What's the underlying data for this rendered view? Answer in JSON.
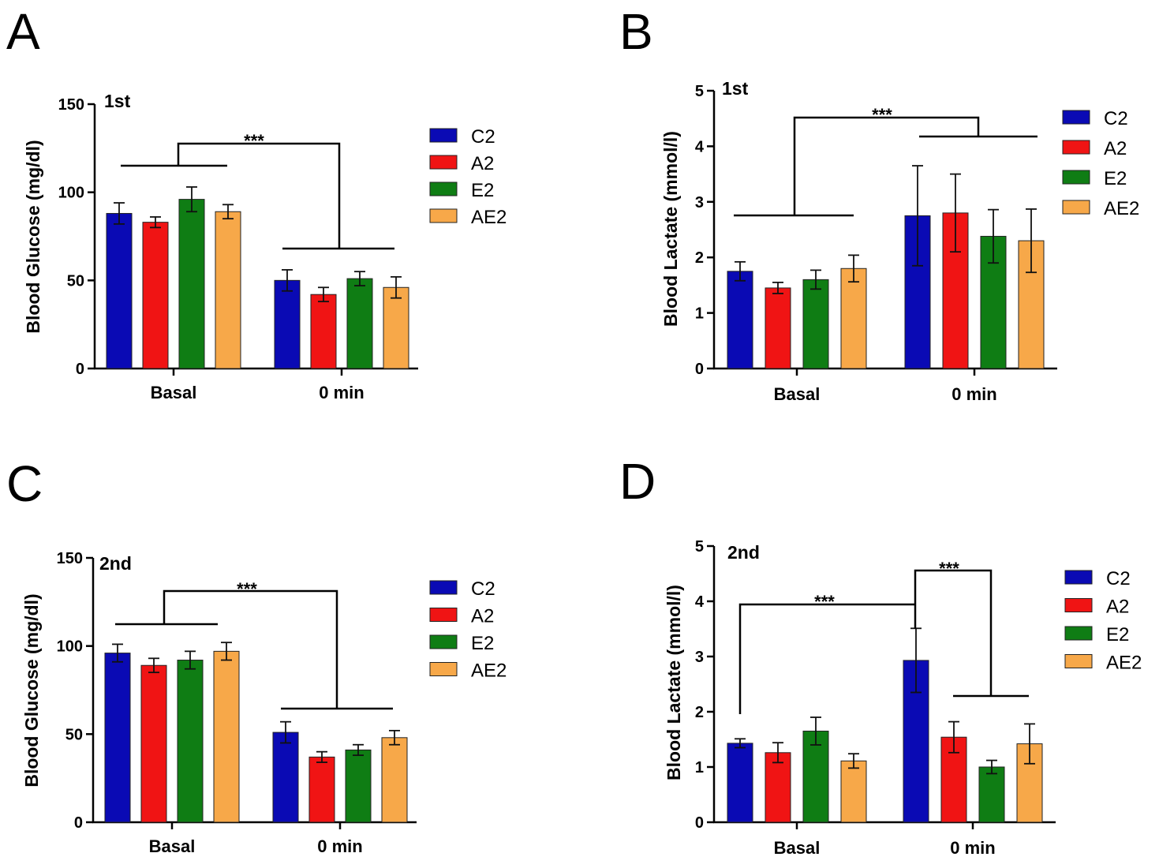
{
  "colors": {
    "C2": "#0a0ab4",
    "A2": "#f01414",
    "E2": "#0f7d14",
    "AE2": "#f7a849",
    "axis": "#000000"
  },
  "chart_data": [
    {
      "panel": "A",
      "type": "bar",
      "subtitle": "1st",
      "ylabel": "Blood Glucose (mg/dl)",
      "ylim": [
        0,
        150
      ],
      "yticks": [
        0,
        50,
        100,
        150
      ],
      "categories": [
        "Basal",
        "0 min"
      ],
      "series": [
        {
          "name": "C2",
          "values": [
            88,
            50
          ],
          "errors": [
            6,
            6
          ]
        },
        {
          "name": "A2",
          "values": [
            83,
            42
          ],
          "errors": [
            3,
            4
          ]
        },
        {
          "name": "E2",
          "values": [
            96,
            51
          ],
          "errors": [
            7,
            4
          ]
        },
        {
          "name": "AE2",
          "values": [
            89,
            46
          ],
          "errors": [
            4,
            6
          ]
        }
      ],
      "significance": [
        {
          "label": "***"
        }
      ]
    },
    {
      "panel": "B",
      "type": "bar",
      "subtitle": "1st",
      "ylabel": "Blood Lactate (mmol/l)",
      "ylim": [
        0,
        5
      ],
      "yticks": [
        0,
        1,
        2,
        3,
        4,
        5
      ],
      "categories": [
        "Basal",
        "0 min"
      ],
      "series": [
        {
          "name": "C2",
          "values": [
            1.75,
            2.75
          ],
          "errors": [
            0.17,
            0.9
          ]
        },
        {
          "name": "A2",
          "values": [
            1.45,
            2.8
          ],
          "errors": [
            0.1,
            0.7
          ]
        },
        {
          "name": "E2",
          "values": [
            1.6,
            2.38
          ],
          "errors": [
            0.17,
            0.48
          ]
        },
        {
          "name": "AE2",
          "values": [
            1.8,
            2.3
          ],
          "errors": [
            0.24,
            0.57
          ]
        }
      ],
      "significance": [
        {
          "label": "***"
        }
      ]
    },
    {
      "panel": "C",
      "type": "bar",
      "subtitle": "2nd",
      "ylabel": "Blood Glucose (mg/dl)",
      "ylim": [
        0,
        150
      ],
      "yticks": [
        0,
        50,
        100,
        150
      ],
      "categories": [
        "Basal",
        "0 min"
      ],
      "series": [
        {
          "name": "C2",
          "values": [
            96,
            51
          ],
          "errors": [
            5,
            6
          ]
        },
        {
          "name": "A2",
          "values": [
            89,
            37
          ],
          "errors": [
            4,
            3
          ]
        },
        {
          "name": "E2",
          "values": [
            92,
            41
          ],
          "errors": [
            5,
            3
          ]
        },
        {
          "name": "AE2",
          "values": [
            97,
            48
          ],
          "errors": [
            5,
            4
          ]
        }
      ],
      "significance": [
        {
          "label": "***"
        }
      ]
    },
    {
      "panel": "D",
      "type": "bar",
      "subtitle": "2nd",
      "ylabel": "Blood Lactate (mmol/l)",
      "ylim": [
        0,
        5
      ],
      "yticks": [
        0,
        1,
        2,
        3,
        4,
        5
      ],
      "categories": [
        "Basal",
        "0 min"
      ],
      "series": [
        {
          "name": "C2",
          "values": [
            1.43,
            2.93
          ],
          "errors": [
            0.08,
            0.58
          ]
        },
        {
          "name": "A2",
          "values": [
            1.26,
            1.54
          ],
          "errors": [
            0.18,
            0.28
          ]
        },
        {
          "name": "E2",
          "values": [
            1.65,
            1.0
          ],
          "errors": [
            0.25,
            0.12
          ]
        },
        {
          "name": "AE2",
          "values": [
            1.11,
            1.42
          ],
          "errors": [
            0.13,
            0.36
          ]
        }
      ],
      "significance": [
        {
          "label": "***"
        },
        {
          "label": "***"
        }
      ]
    }
  ]
}
